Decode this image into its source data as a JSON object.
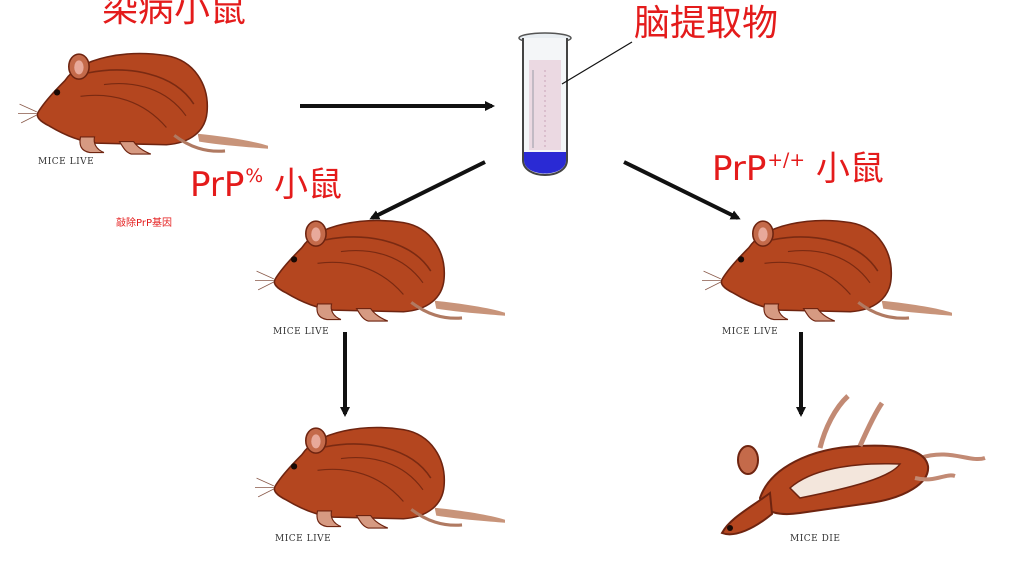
{
  "labels": {
    "infected": "染病小鼠",
    "brain_extract": "脑提取物",
    "knockout_base": "PrP",
    "knockout_sup": "%",
    "knockout_suffix": " 小鼠",
    "wildtype_base": "PrP",
    "wildtype_sup": "+/+",
    "wildtype_suffix": " 小鼠",
    "knockout_note": "敲除PrP基因"
  },
  "captions": {
    "top_left": "MICE LIVE",
    "mid_left": "MICE LIVE",
    "mid_right": "MICE LIVE",
    "bottom_left": "MICE LIVE",
    "bottom_right": "MICE DIE"
  },
  "icons": {
    "mouse": "live-mouse-icon",
    "dead_mouse": "dead-mouse-icon",
    "tube": "test-tube-icon"
  },
  "colors": {
    "label_red": "#e41b1b",
    "mouse_body": "#b4461f",
    "tube_liquid": "#2a2ad4"
  }
}
